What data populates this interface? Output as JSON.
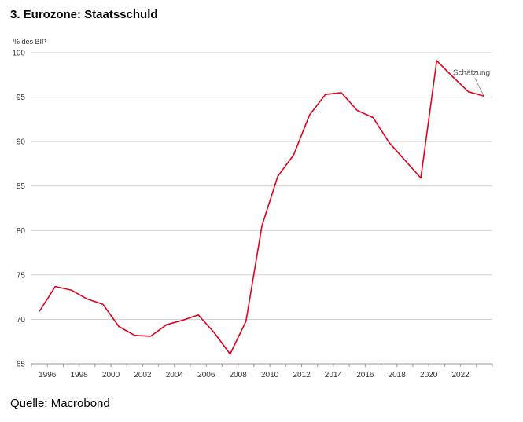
{
  "chart_data": {
    "type": "line",
    "title": "3. Eurozone: Staatsschuld",
    "ylabel": "% des BIP",
    "xlabel": "",
    "source": "Quelle: Macrobond",
    "ylim": [
      65,
      100
    ],
    "xlim": [
      1995,
      2024
    ],
    "yticks": [
      65,
      70,
      75,
      80,
      85,
      90,
      95,
      100
    ],
    "xticks": [
      1996,
      1998,
      2000,
      2002,
      2004,
      2006,
      2008,
      2010,
      2012,
      2014,
      2016,
      2018,
      2020,
      2022
    ],
    "grid": true,
    "line_color": "#e3001b",
    "series": [
      {
        "x": [
          1995.5,
          1996.5,
          1997.5,
          1998.5,
          1999.5,
          2000.5,
          2001.5,
          2002.5,
          2003.5,
          2004.5,
          2005.5,
          2006.5,
          2007.5,
          2008.5,
          2009.5,
          2010.5,
          2011.5,
          2012.5,
          2013.5,
          2014.5,
          2015.5,
          2016.5,
          2017.5,
          2018.5,
          2019.5,
          2020.5,
          2021.5,
          2022.5,
          2023.5
        ],
        "values": [
          70.9,
          73.7,
          73.3,
          72.3,
          71.7,
          69.2,
          68.2,
          68.1,
          69.4,
          69.9,
          70.5,
          68.5,
          66.1,
          69.8,
          80.5,
          86.1,
          88.5,
          93.0,
          95.3,
          95.5,
          93.5,
          92.7,
          89.9,
          87.9,
          85.9,
          99.1,
          97.3,
          95.6,
          95.1
        ]
      }
    ],
    "annotations": [
      {
        "text": "Schätzung",
        "x": 2023.5,
        "y": 95.1
      }
    ]
  }
}
